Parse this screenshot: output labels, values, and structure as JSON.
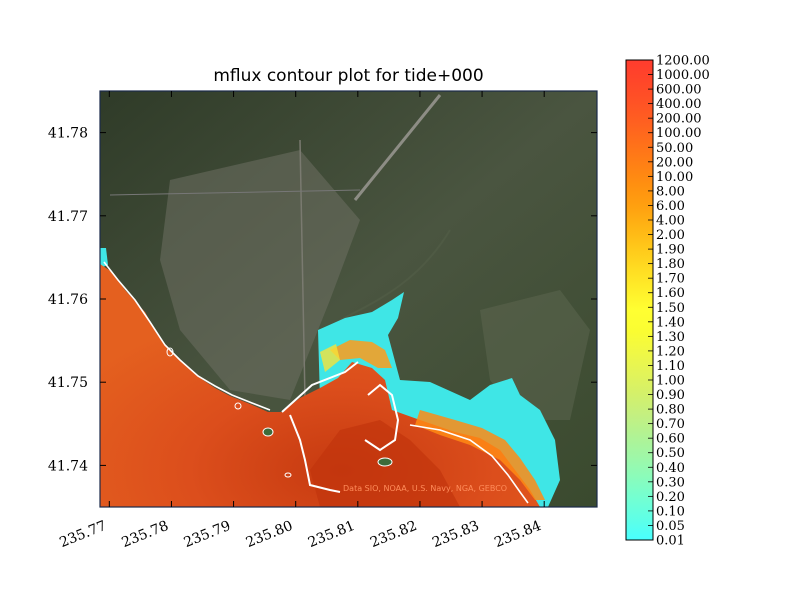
{
  "chart_data": {
    "type": "heatmap",
    "title": "mflux contour plot for tide+000",
    "xlabel": "",
    "ylabel": "",
    "xlim": [
      235.7685,
      235.8485
    ],
    "ylim": [
      41.735,
      41.785
    ],
    "x_ticks": [
      "235.77",
      "235.78",
      "235.79",
      "235.80",
      "235.81",
      "235.82",
      "235.83",
      "235.84"
    ],
    "y_ticks": [
      "41.74",
      "41.75",
      "41.76",
      "41.77",
      "41.78"
    ],
    "colorbar": {
      "levels": [
        "0.01",
        "0.05",
        "0.10",
        "0.20",
        "0.30",
        "0.40",
        "0.50",
        "0.60",
        "0.70",
        "0.80",
        "0.90",
        "1.00",
        "1.10",
        "1.20",
        "1.30",
        "1.40",
        "1.50",
        "1.60",
        "1.70",
        "1.80",
        "1.90",
        "2.00",
        "4.00",
        "6.00",
        "8.00",
        "10.00",
        "20.00",
        "50.00",
        "100.00",
        "200.00",
        "400.00",
        "600.00",
        "1000.00",
        "1200.00"
      ],
      "colors": [
        "#48ffff",
        "#5fffe6",
        "#73ffd2",
        "#8afcbb",
        "#9ff7a7",
        "#b1f394",
        "#c4f080",
        "#d4f06a",
        "#e3f458",
        "#f0f845",
        "#fafd32",
        "#ffff32",
        "#ffee2a",
        "#ffdc22",
        "#ffc81a",
        "#ffb414",
        "#ffa010",
        "#ff9010",
        "#ff8015",
        "#ff701a",
        "#ff6020",
        "#ff5225",
        "#ff4629",
        "#ff3c2e"
      ]
    },
    "attribution": "Data SIO, NOAA, U.S. Navy, NGA, GEBCO",
    "colors": {
      "ocean": "#e0531e",
      "ocean_dark": "#c93f12",
      "land": "#3e4a32",
      "shallow_cyan": "#44e8e8",
      "coast_line": "#ffffff"
    }
  }
}
